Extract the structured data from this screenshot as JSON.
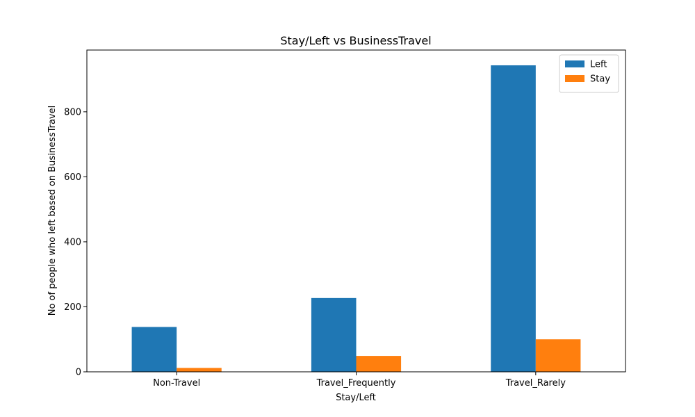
{
  "chart_data": {
    "type": "bar",
    "title": "Stay/Left vs BusinessTravel",
    "xlabel": "Stay/Left",
    "ylabel": "No of people who left based on BusinessTravel",
    "categories": [
      "Non-Travel",
      "Travel_Frequently",
      "Travel_Rarely"
    ],
    "series": [
      {
        "name": "Left",
        "values": [
          138,
          227,
          943
        ],
        "color": "#1f77b4"
      },
      {
        "name": "Stay",
        "values": [
          12,
          49,
          100
        ],
        "color": "#ff7f0e"
      }
    ],
    "ylim": [
      0,
      990
    ],
    "yticks": [
      0,
      200,
      400,
      600,
      800
    ],
    "grid": false,
    "legend_position": "top-right"
  }
}
